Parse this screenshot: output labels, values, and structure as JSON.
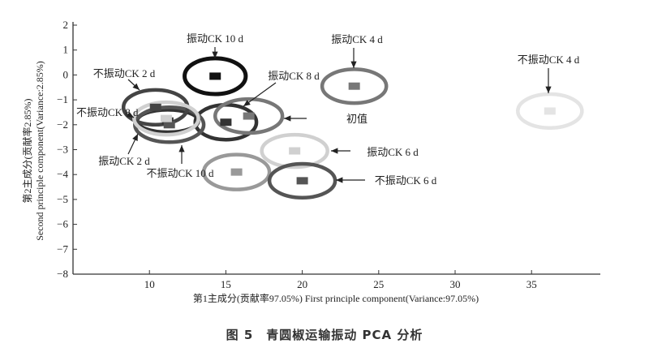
{
  "chart_data": {
    "type": "scatter",
    "caption": "图 5　青圆椒运输振动 PCA 分析",
    "xlabel": "第1主成分(贡献率97.05%) First principle component(Variance:97.05%)",
    "ylabel_cn": "第2主成分(贡献率2.85%)",
    "ylabel_en": "Second principle component(Variance:2.85%)",
    "xlim": [
      5,
      39.5
    ],
    "ylim": [
      -8,
      2
    ],
    "xticks": [
      10,
      15,
      20,
      25,
      30,
      35
    ],
    "yticks": [
      2,
      1,
      0,
      -1,
      -2,
      -3,
      -4,
      -5,
      -6,
      -7,
      -8
    ],
    "grid": false,
    "groups": [
      {
        "name": "振动CK 10 d",
        "x": 14.3,
        "y": -0.05,
        "rx": 2.0,
        "ry": 0.72,
        "color": "#111111"
      },
      {
        "name": "振动CK 4 d",
        "x": 23.4,
        "y": -0.45,
        "rx": 2.1,
        "ry": 0.68,
        "color": "#777777"
      },
      {
        "name": "不振动CK 4 d",
        "x": 36.2,
        "y": -1.45,
        "rx": 2.1,
        "ry": 0.68,
        "color": "#e4e4e4"
      },
      {
        "name": "不振动CK 2 d",
        "x": 10.4,
        "y": -1.3,
        "rx": 2.1,
        "ry": 0.7,
        "color": "#444444"
      },
      {
        "name": "振动CK 8 d",
        "x": 11.1,
        "y": -1.75,
        "rx": 2.1,
        "ry": 0.65,
        "color": "#d0d0d0"
      },
      {
        "name": "不振动CK 8 d",
        "x": 11.2,
        "y": -1.85,
        "rx": 2.0,
        "ry": 0.45,
        "color": "#333333"
      },
      {
        "name": "初值",
        "x": 11.3,
        "y": -2.0,
        "rx": 2.25,
        "ry": 0.7,
        "color": "#555555"
      },
      {
        "name": "振动CK 2 d",
        "x": 15.0,
        "y": -1.9,
        "rx": 2.0,
        "ry": 0.7,
        "color": "#333333"
      },
      {
        "name": "不振动CK 10 d",
        "x": 16.5,
        "y": -1.65,
        "rx": 2.2,
        "ry": 0.68,
        "color": "#777777"
      },
      {
        "name": "振动CK 6 d",
        "x": 19.5,
        "y": -3.05,
        "rx": 2.15,
        "ry": 0.65,
        "color": "#d0d0d0"
      },
      {
        "name": "不振动CK 6 d",
        "x": 20.0,
        "y": -4.25,
        "rx": 2.15,
        "ry": 0.68,
        "color": "#555555"
      },
      {
        "name": "",
        "x": 15.7,
        "y": -3.9,
        "rx": 2.15,
        "ry": 0.7,
        "color": "#999999"
      }
    ]
  }
}
